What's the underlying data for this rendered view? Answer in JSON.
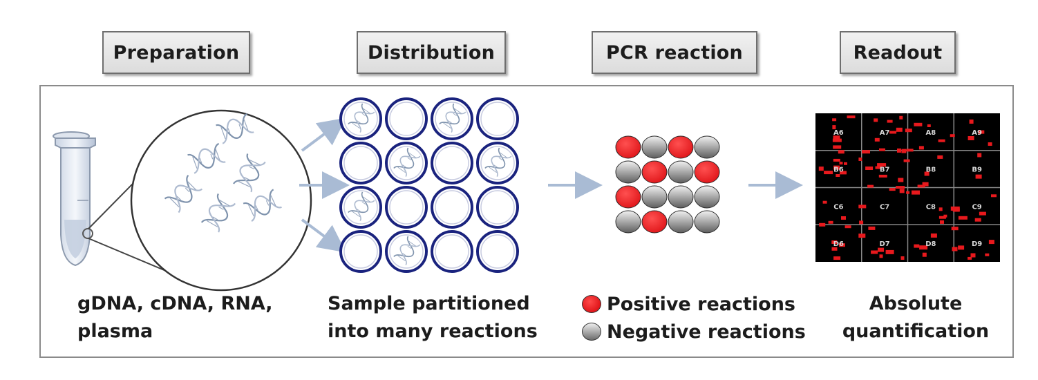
{
  "stages": [
    {
      "label": "Preparation"
    },
    {
      "label": "Distribution"
    },
    {
      "label": "PCR  reaction"
    },
    {
      "label": "Readout"
    }
  ],
  "captions": {
    "preparation": [
      "gDNA, cDNA, RNA,",
      "plasma"
    ],
    "distribution": [
      "Sample partitioned",
      "into many reactions"
    ],
    "readout": [
      "Absolute",
      "quantification"
    ]
  },
  "legend": {
    "positive": "Positive reactions",
    "negative": "Negative reactions"
  },
  "colors": {
    "positive": "#e8191d",
    "well_border": "#1a237e",
    "arrow": "#a9bbd4",
    "readout_bg": "#000000"
  },
  "wells_with_dna": [
    [
      0,
      0
    ],
    [
      0,
      2
    ],
    [
      1,
      1
    ],
    [
      1,
      3
    ],
    [
      2,
      0
    ],
    [
      3,
      1
    ]
  ],
  "pcr_positive": [
    [
      0,
      0
    ],
    [
      0,
      2
    ],
    [
      1,
      1
    ],
    [
      1,
      3
    ],
    [
      2,
      0
    ],
    [
      3,
      1
    ]
  ],
  "readout_grid": {
    "rows": [
      [
        "A6",
        "A7",
        "A8",
        "A9"
      ],
      [
        "B6",
        "B7",
        "B8",
        "B9"
      ],
      [
        "C6",
        "C7",
        "C8",
        "C9"
      ],
      [
        "D6",
        "D7",
        "D8",
        "D9"
      ]
    ]
  }
}
